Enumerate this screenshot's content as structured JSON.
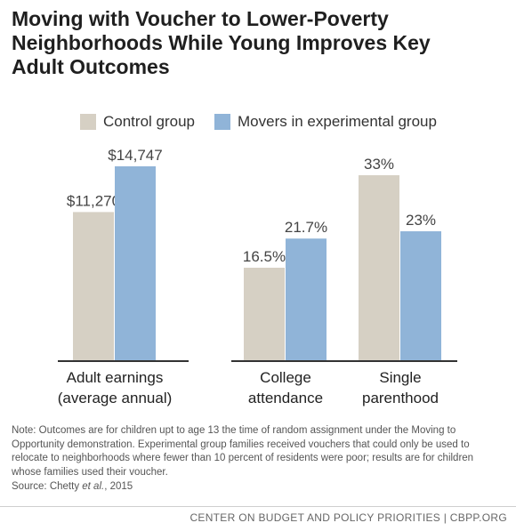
{
  "title_lines": [
    "Moving with Voucher to Lower-Poverty",
    "Neighborhoods While Young Improves Key",
    "Adult Outcomes"
  ],
  "legend": [
    {
      "label": "Control group",
      "color": "#d6d0c4"
    },
    {
      "label": "Movers in experimental group",
      "color": "#90b4d8"
    }
  ],
  "chart_data": [
    {
      "type": "bar",
      "categories": [
        [
          "Adult earnings",
          "(average annual)"
        ]
      ],
      "series": [
        {
          "name": "Control group",
          "values": [
            11270
          ],
          "labels": [
            "$11,270"
          ],
          "color": "#d6d0c4"
        },
        {
          "name": "Movers in experimental group",
          "values": [
            14747
          ],
          "labels": [
            "$14,747"
          ],
          "color": "#90b4d8"
        }
      ],
      "unit": "$"
    },
    {
      "type": "bar",
      "categories": [
        [
          "College",
          "attendance"
        ],
        [
          "Single",
          "parenthood"
        ]
      ],
      "series": [
        {
          "name": "Control group",
          "values": [
            16.5,
            33
          ],
          "labels": [
            "16.5%",
            "33%"
          ],
          "color": "#d6d0c4"
        },
        {
          "name": "Movers in experimental group",
          "values": [
            21.7,
            23
          ],
          "labels": [
            "21.7%",
            "23%"
          ],
          "color": "#90b4d8"
        }
      ],
      "unit": "%"
    }
  ],
  "note": "Note: Outcomes are for children upt to age 13 the time of random assignment under the Moving to Opportunity demonstration.  Experimental group families received vouchers that could only be used to relocate to neighborhoods where fewer than 10 percent of residents were poor; results are for children whose families used their voucher.",
  "source": {
    "prefix": "Source: Chetty ",
    "italic": "et al.",
    "suffix": ", 2015"
  },
  "footer": "CENTER ON BUDGET AND POLICY PRIORITIES | CBPP.ORG"
}
